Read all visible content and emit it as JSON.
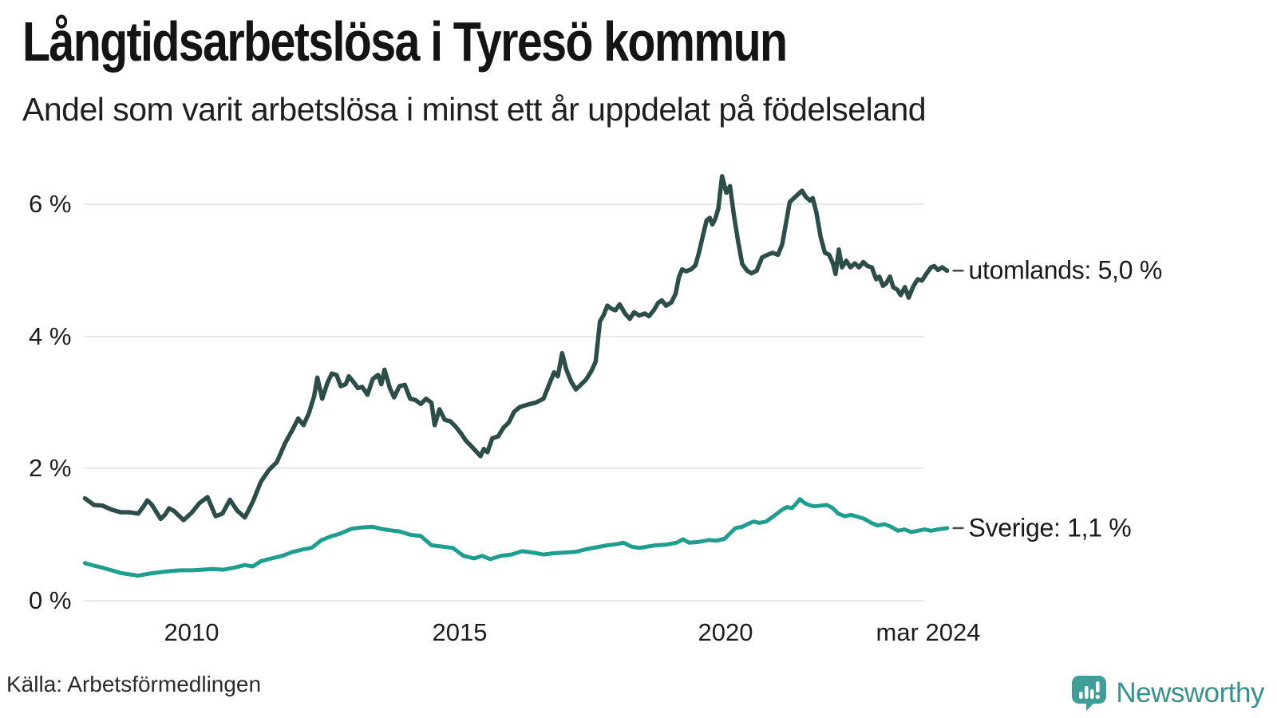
{
  "header": {
    "title": "Långtidsarbetslösa i Tyresö kommun",
    "subtitle": "Andel som varit arbetslösa i minst ett år uppdelat på födelseland"
  },
  "chart_data": {
    "type": "line",
    "title": "Långtidsarbetslösa i Tyresö kommun",
    "subtitle": "Andel som varit arbetslösa i minst ett år uppdelat på födelseland",
    "xlabel": "",
    "ylabel": "",
    "grid": true,
    "ylim": [
      0,
      6.6
    ],
    "xlim": [
      2008.0,
      2024.25
    ],
    "y_ticks": [
      "6 %",
      "4 %",
      "2 %",
      "0 %"
    ],
    "y_tick_values": [
      6,
      4,
      2,
      0
    ],
    "x_ticks": [
      "2010",
      "2015",
      "2020",
      "mar 2024"
    ],
    "x_tick_values": [
      2010,
      2015,
      2020,
      2024.17
    ],
    "colors": {
      "grid": "#e8e8ec",
      "label_dash": "#4a4a4a"
    },
    "series": [
      {
        "name": "utomlands",
        "label": "utomlands: 5,0 %",
        "end_value_label": "5,0 %",
        "color": "#2d4e48",
        "points": [
          [
            2008.0,
            1.55
          ],
          [
            2008.17,
            1.45
          ],
          [
            2008.33,
            1.44
          ],
          [
            2008.5,
            1.38
          ],
          [
            2008.67,
            1.34
          ],
          [
            2008.83,
            1.34
          ],
          [
            2009.0,
            1.32
          ],
          [
            2009.1,
            1.43
          ],
          [
            2009.17,
            1.52
          ],
          [
            2009.25,
            1.46
          ],
          [
            2009.42,
            1.24
          ],
          [
            2009.5,
            1.3
          ],
          [
            2009.58,
            1.4
          ],
          [
            2009.67,
            1.36
          ],
          [
            2009.85,
            1.22
          ],
          [
            2010.0,
            1.33
          ],
          [
            2010.15,
            1.48
          ],
          [
            2010.3,
            1.57
          ],
          [
            2010.45,
            1.28
          ],
          [
            2010.58,
            1.32
          ],
          [
            2010.72,
            1.53
          ],
          [
            2010.85,
            1.37
          ],
          [
            2011.0,
            1.26
          ],
          [
            2011.15,
            1.5
          ],
          [
            2011.3,
            1.8
          ],
          [
            2011.45,
            1.98
          ],
          [
            2011.6,
            2.1
          ],
          [
            2011.75,
            2.38
          ],
          [
            2011.9,
            2.6
          ],
          [
            2012.0,
            2.76
          ],
          [
            2012.1,
            2.66
          ],
          [
            2012.2,
            2.84
          ],
          [
            2012.3,
            3.1
          ],
          [
            2012.36,
            3.38
          ],
          [
            2012.45,
            3.06
          ],
          [
            2012.55,
            3.3
          ],
          [
            2012.63,
            3.44
          ],
          [
            2012.72,
            3.42
          ],
          [
            2012.8,
            3.25
          ],
          [
            2012.89,
            3.28
          ],
          [
            2012.95,
            3.4
          ],
          [
            2013.05,
            3.3
          ],
          [
            2013.12,
            3.22
          ],
          [
            2013.2,
            3.24
          ],
          [
            2013.3,
            3.12
          ],
          [
            2013.4,
            3.36
          ],
          [
            2013.5,
            3.42
          ],
          [
            2013.56,
            3.28
          ],
          [
            2013.62,
            3.5
          ],
          [
            2013.72,
            3.22
          ],
          [
            2013.8,
            3.08
          ],
          [
            2013.9,
            3.25
          ],
          [
            2014.0,
            3.27
          ],
          [
            2014.1,
            3.06
          ],
          [
            2014.2,
            3.04
          ],
          [
            2014.3,
            2.98
          ],
          [
            2014.4,
            3.06
          ],
          [
            2014.5,
            3.0
          ],
          [
            2014.56,
            2.66
          ],
          [
            2014.65,
            2.9
          ],
          [
            2014.75,
            2.74
          ],
          [
            2014.85,
            2.72
          ],
          [
            2014.95,
            2.64
          ],
          [
            2015.05,
            2.54
          ],
          [
            2015.15,
            2.42
          ],
          [
            2015.25,
            2.34
          ],
          [
            2015.34,
            2.26
          ],
          [
            2015.42,
            2.19
          ],
          [
            2015.48,
            2.3
          ],
          [
            2015.55,
            2.25
          ],
          [
            2015.64,
            2.46
          ],
          [
            2015.75,
            2.49
          ],
          [
            2015.85,
            2.62
          ],
          [
            2015.95,
            2.7
          ],
          [
            2016.05,
            2.86
          ],
          [
            2016.15,
            2.93
          ],
          [
            2016.3,
            2.97
          ],
          [
            2016.45,
            3.0
          ],
          [
            2016.6,
            3.06
          ],
          [
            2016.72,
            3.3
          ],
          [
            2016.8,
            3.46
          ],
          [
            2016.87,
            3.4
          ],
          [
            2016.95,
            3.75
          ],
          [
            2017.03,
            3.5
          ],
          [
            2017.12,
            3.32
          ],
          [
            2017.21,
            3.2
          ],
          [
            2017.3,
            3.27
          ],
          [
            2017.4,
            3.35
          ],
          [
            2017.5,
            3.48
          ],
          [
            2017.58,
            3.62
          ],
          [
            2017.66,
            4.23
          ],
          [
            2017.73,
            4.33
          ],
          [
            2017.8,
            4.47
          ],
          [
            2017.88,
            4.42
          ],
          [
            2017.95,
            4.4
          ],
          [
            2018.03,
            4.49
          ],
          [
            2018.13,
            4.35
          ],
          [
            2018.22,
            4.27
          ],
          [
            2018.3,
            4.37
          ],
          [
            2018.4,
            4.32
          ],
          [
            2018.5,
            4.35
          ],
          [
            2018.58,
            4.31
          ],
          [
            2018.67,
            4.4
          ],
          [
            2018.75,
            4.51
          ],
          [
            2018.82,
            4.55
          ],
          [
            2018.9,
            4.47
          ],
          [
            2019.0,
            4.52
          ],
          [
            2019.08,
            4.65
          ],
          [
            2019.14,
            4.9
          ],
          [
            2019.2,
            5.02
          ],
          [
            2019.28,
            4.99
          ],
          [
            2019.37,
            5.02
          ],
          [
            2019.45,
            5.08
          ],
          [
            2019.52,
            5.28
          ],
          [
            2019.6,
            5.56
          ],
          [
            2019.66,
            5.76
          ],
          [
            2019.72,
            5.8
          ],
          [
            2019.77,
            5.7
          ],
          [
            2019.82,
            5.78
          ],
          [
            2019.88,
            5.94
          ],
          [
            2019.95,
            6.43
          ],
          [
            2020.03,
            6.18
          ],
          [
            2020.1,
            6.28
          ],
          [
            2020.17,
            5.85
          ],
          [
            2020.25,
            5.45
          ],
          [
            2020.33,
            5.1
          ],
          [
            2020.42,
            5.0
          ],
          [
            2020.5,
            4.96
          ],
          [
            2020.6,
            5.0
          ],
          [
            2020.7,
            5.2
          ],
          [
            2020.8,
            5.24
          ],
          [
            2020.9,
            5.27
          ],
          [
            2021.0,
            5.24
          ],
          [
            2021.08,
            5.4
          ],
          [
            2021.15,
            5.72
          ],
          [
            2021.22,
            6.04
          ],
          [
            2021.3,
            6.1
          ],
          [
            2021.38,
            6.16
          ],
          [
            2021.45,
            6.21
          ],
          [
            2021.52,
            6.12
          ],
          [
            2021.6,
            6.06
          ],
          [
            2021.65,
            6.1
          ],
          [
            2021.72,
            5.88
          ],
          [
            2021.8,
            5.51
          ],
          [
            2021.88,
            5.27
          ],
          [
            2021.96,
            5.24
          ],
          [
            2022.03,
            5.11
          ],
          [
            2022.08,
            4.95
          ],
          [
            2022.14,
            5.32
          ],
          [
            2022.2,
            5.05
          ],
          [
            2022.28,
            5.15
          ],
          [
            2022.36,
            5.05
          ],
          [
            2022.44,
            5.11
          ],
          [
            2022.52,
            5.05
          ],
          [
            2022.6,
            5.13
          ],
          [
            2022.68,
            5.07
          ],
          [
            2022.76,
            5.05
          ],
          [
            2022.84,
            4.87
          ],
          [
            2022.9,
            4.91
          ],
          [
            2022.97,
            4.77
          ],
          [
            2023.03,
            4.81
          ],
          [
            2023.1,
            4.91
          ],
          [
            2023.16,
            4.75
          ],
          [
            2023.24,
            4.71
          ],
          [
            2023.3,
            4.63
          ],
          [
            2023.38,
            4.75
          ],
          [
            2023.45,
            4.59
          ],
          [
            2023.53,
            4.75
          ],
          [
            2023.62,
            4.87
          ],
          [
            2023.7,
            4.85
          ],
          [
            2023.78,
            4.95
          ],
          [
            2023.87,
            5.05
          ],
          [
            2023.93,
            5.07
          ],
          [
            2024.0,
            5.01
          ],
          [
            2024.08,
            5.05
          ],
          [
            2024.17,
            5.0
          ]
        ]
      },
      {
        "name": "Sverige",
        "label": "Sverige: 1,1 %",
        "end_value_label": "1,1 %",
        "color": "#1d9e8e",
        "points": [
          [
            2008.0,
            0.57
          ],
          [
            2008.17,
            0.53
          ],
          [
            2008.33,
            0.5
          ],
          [
            2008.5,
            0.46
          ],
          [
            2008.67,
            0.42
          ],
          [
            2008.83,
            0.4
          ],
          [
            2009.0,
            0.38
          ],
          [
            2009.2,
            0.41
          ],
          [
            2009.4,
            0.43
          ],
          [
            2009.6,
            0.45
          ],
          [
            2009.8,
            0.46
          ],
          [
            2010.0,
            0.46
          ],
          [
            2010.2,
            0.47
          ],
          [
            2010.4,
            0.48
          ],
          [
            2010.6,
            0.47
          ],
          [
            2010.8,
            0.5
          ],
          [
            2011.0,
            0.54
          ],
          [
            2011.15,
            0.52
          ],
          [
            2011.3,
            0.6
          ],
          [
            2011.5,
            0.64
          ],
          [
            2011.7,
            0.68
          ],
          [
            2011.9,
            0.74
          ],
          [
            2012.1,
            0.78
          ],
          [
            2012.25,
            0.8
          ],
          [
            2012.44,
            0.92
          ],
          [
            2012.6,
            0.97
          ],
          [
            2012.8,
            1.02
          ],
          [
            2013.0,
            1.09
          ],
          [
            2013.2,
            1.11
          ],
          [
            2013.4,
            1.12
          ],
          [
            2013.55,
            1.09
          ],
          [
            2013.7,
            1.07
          ],
          [
            2013.9,
            1.05
          ],
          [
            2014.1,
            1.0
          ],
          [
            2014.3,
            0.98
          ],
          [
            2014.5,
            0.84
          ],
          [
            2014.7,
            0.82
          ],
          [
            2014.9,
            0.8
          ],
          [
            2015.1,
            0.68
          ],
          [
            2015.3,
            0.64
          ],
          [
            2015.45,
            0.68
          ],
          [
            2015.6,
            0.63
          ],
          [
            2015.8,
            0.68
          ],
          [
            2016.0,
            0.7
          ],
          [
            2016.2,
            0.75
          ],
          [
            2016.4,
            0.73
          ],
          [
            2016.6,
            0.7
          ],
          [
            2016.8,
            0.72
          ],
          [
            2017.0,
            0.73
          ],
          [
            2017.2,
            0.74
          ],
          [
            2017.4,
            0.78
          ],
          [
            2017.6,
            0.81
          ],
          [
            2017.8,
            0.84
          ],
          [
            2018.0,
            0.86
          ],
          [
            2018.1,
            0.88
          ],
          [
            2018.25,
            0.82
          ],
          [
            2018.4,
            0.8
          ],
          [
            2018.55,
            0.82
          ],
          [
            2018.7,
            0.84
          ],
          [
            2018.9,
            0.85
          ],
          [
            2019.1,
            0.88
          ],
          [
            2019.22,
            0.93
          ],
          [
            2019.33,
            0.88
          ],
          [
            2019.5,
            0.89
          ],
          [
            2019.7,
            0.92
          ],
          [
            2019.85,
            0.91
          ],
          [
            2020.0,
            0.94
          ],
          [
            2020.1,
            1.02
          ],
          [
            2020.2,
            1.1
          ],
          [
            2020.33,
            1.12
          ],
          [
            2020.45,
            1.17
          ],
          [
            2020.55,
            1.2
          ],
          [
            2020.65,
            1.18
          ],
          [
            2020.78,
            1.2
          ],
          [
            2020.95,
            1.3
          ],
          [
            2021.08,
            1.38
          ],
          [
            2021.17,
            1.42
          ],
          [
            2021.26,
            1.4
          ],
          [
            2021.33,
            1.46
          ],
          [
            2021.41,
            1.54
          ],
          [
            2021.5,
            1.48
          ],
          [
            2021.58,
            1.45
          ],
          [
            2021.68,
            1.43
          ],
          [
            2021.8,
            1.44
          ],
          [
            2021.92,
            1.45
          ],
          [
            2022.03,
            1.4
          ],
          [
            2022.13,
            1.32
          ],
          [
            2022.25,
            1.28
          ],
          [
            2022.37,
            1.3
          ],
          [
            2022.5,
            1.27
          ],
          [
            2022.62,
            1.24
          ],
          [
            2022.75,
            1.18
          ],
          [
            2022.87,
            1.14
          ],
          [
            2023.0,
            1.16
          ],
          [
            2023.12,
            1.12
          ],
          [
            2023.25,
            1.06
          ],
          [
            2023.37,
            1.08
          ],
          [
            2023.5,
            1.04
          ],
          [
            2023.62,
            1.06
          ],
          [
            2023.75,
            1.08
          ],
          [
            2023.87,
            1.06
          ],
          [
            2024.0,
            1.08
          ],
          [
            2024.08,
            1.09
          ],
          [
            2024.17,
            1.1
          ]
        ]
      }
    ]
  },
  "footer": {
    "source": "Källa: Arbetsförmedlingen",
    "brand": "Newsworthy",
    "brand_color": "#33928c",
    "brand_bubble_color": "#3f9e98"
  }
}
